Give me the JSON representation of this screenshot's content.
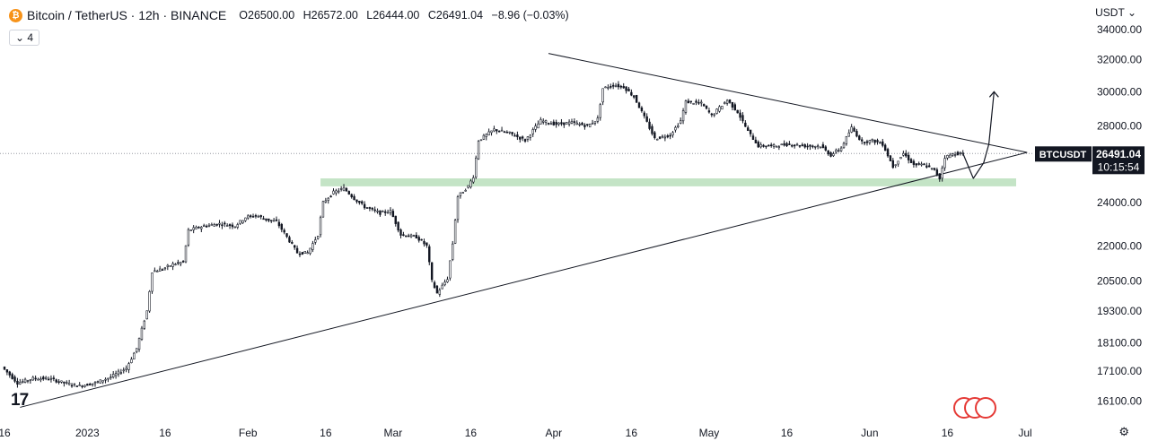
{
  "header": {
    "symbol_title": "Bitcoin / TetherUS · 12h · BINANCE",
    "open": "O26500.00",
    "high": "H26572.00",
    "low": "L26444.00",
    "close": "C26491.04",
    "change": "−8.96 (−0.03%)",
    "indicator_badge": "4"
  },
  "currency_selector": "USDT",
  "price_label": {
    "symbol": "BTCUSDT",
    "price": "26491.04",
    "countdown": "10:15:54"
  },
  "colors": {
    "up": "#131722",
    "down": "#131722",
    "support_zone": "#a5d6a7",
    "last_price_line": "#9598a1",
    "flag_ring": "#e53935"
  },
  "icons": [
    "bitcoin-icon",
    "chevron-down-icon",
    "settings-icon",
    "tradingview-logo-icon",
    "country-flags-icon"
  ],
  "chart_data": {
    "type": "candlestick",
    "title": "Bitcoin / TetherUS · 12h · BINANCE",
    "y_axis": {
      "scale": "log",
      "ticks": [
        16100,
        17100,
        18100,
        19300,
        20500,
        22000,
        24000,
        26000,
        28000,
        30000,
        32000,
        34000
      ],
      "tick_labels": [
        "16100.00",
        "17100.00",
        "18100.00",
        "19300.00",
        "20500.00",
        "22000.00",
        "24000.00",
        "26000.00",
        "28000.00",
        "30000.00",
        "32000.00",
        "34000.00"
      ],
      "range": [
        15600,
        34800
      ]
    },
    "x_axis": {
      "range": [
        "2022-12-16",
        "2023-07-01"
      ],
      "ticks": [
        {
          "date": "2022-12-16",
          "label": "16"
        },
        {
          "date": "2023-01-01",
          "label": "2023"
        },
        {
          "date": "2023-01-16",
          "label": "16"
        },
        {
          "date": "2023-02-01",
          "label": "Feb"
        },
        {
          "date": "2023-02-16",
          "label": "16"
        },
        {
          "date": "2023-03-01",
          "label": "Mar"
        },
        {
          "date": "2023-03-16",
          "label": "16"
        },
        {
          "date": "2023-04-01",
          "label": "Apr"
        },
        {
          "date": "2023-04-16",
          "label": "16"
        },
        {
          "date": "2023-05-01",
          "label": "May"
        },
        {
          "date": "2023-05-16",
          "label": "16"
        },
        {
          "date": "2023-06-01",
          "label": "Jun"
        },
        {
          "date": "2023-06-16",
          "label": "16"
        },
        {
          "date": "2023-07-01",
          "label": "Jul"
        }
      ]
    },
    "price_path": [
      [
        "2022-12-16",
        17250
      ],
      [
        "2022-12-19",
        16700
      ],
      [
        "2022-12-22",
        16850
      ],
      [
        "2022-12-25",
        16850
      ],
      [
        "2022-12-28",
        16700
      ],
      [
        "2022-12-31",
        16600
      ],
      [
        "2023-01-03",
        16700
      ],
      [
        "2023-01-06",
        16900
      ],
      [
        "2023-01-09",
        17200
      ],
      [
        "2023-01-11",
        17900
      ],
      [
        "2023-01-13",
        19300
      ],
      [
        "2023-01-14",
        20900
      ],
      [
        "2023-01-16",
        21000
      ],
      [
        "2023-01-18",
        21200
      ],
      [
        "2023-01-20",
        21300
      ],
      [
        "2023-01-21",
        22700
      ],
      [
        "2023-01-24",
        22900
      ],
      [
        "2023-01-27",
        23000
      ],
      [
        "2023-01-30",
        22900
      ],
      [
        "2023-02-01",
        23300
      ],
      [
        "2023-02-03",
        23400
      ],
      [
        "2023-02-05",
        23200
      ],
      [
        "2023-02-07",
        23100
      ],
      [
        "2023-02-09",
        22400
      ],
      [
        "2023-02-11",
        21700
      ],
      [
        "2023-02-13",
        21700
      ],
      [
        "2023-02-15",
        22500
      ],
      [
        "2023-02-16",
        24000
      ],
      [
        "2023-02-18",
        24500
      ],
      [
        "2023-02-20",
        24700
      ],
      [
        "2023-02-22",
        24200
      ],
      [
        "2023-02-24",
        23800
      ],
      [
        "2023-02-27",
        23500
      ],
      [
        "2023-03-01",
        23600
      ],
      [
        "2023-03-03",
        22500
      ],
      [
        "2023-03-06",
        22400
      ],
      [
        "2023-03-08",
        22000
      ],
      [
        "2023-03-09",
        20500
      ],
      [
        "2023-03-10",
        20000
      ],
      [
        "2023-03-12",
        20600
      ],
      [
        "2023-03-13",
        22100
      ],
      [
        "2023-03-14",
        24300
      ],
      [
        "2023-03-16",
        24800
      ],
      [
        "2023-03-17",
        25300
      ],
      [
        "2023-03-18",
        27200
      ],
      [
        "2023-03-21",
        27800
      ],
      [
        "2023-03-24",
        27600
      ],
      [
        "2023-03-27",
        27200
      ],
      [
        "2023-03-30",
        28300
      ],
      [
        "2023-04-02",
        28100
      ],
      [
        "2023-04-05",
        28200
      ],
      [
        "2023-04-08",
        28000
      ],
      [
        "2023-04-10",
        28400
      ],
      [
        "2023-04-11",
        30200
      ],
      [
        "2023-04-13",
        30400
      ],
      [
        "2023-04-15",
        30300
      ],
      [
        "2023-04-17",
        29700
      ],
      [
        "2023-04-19",
        28500
      ],
      [
        "2023-04-21",
        27300
      ],
      [
        "2023-04-24",
        27500
      ],
      [
        "2023-04-26",
        28300
      ],
      [
        "2023-04-27",
        29400
      ],
      [
        "2023-04-30",
        29300
      ],
      [
        "2023-05-02",
        28600
      ],
      [
        "2023-05-05",
        29500
      ],
      [
        "2023-05-07",
        28800
      ],
      [
        "2023-05-09",
        27700
      ],
      [
        "2023-05-11",
        26900
      ],
      [
        "2023-05-14",
        26900
      ],
      [
        "2023-05-17",
        27000
      ],
      [
        "2023-05-20",
        26900
      ],
      [
        "2023-05-23",
        26900
      ],
      [
        "2023-05-25",
        26400
      ],
      [
        "2023-05-27",
        26800
      ],
      [
        "2023-05-29",
        27900
      ],
      [
        "2023-05-31",
        27100
      ],
      [
        "2023-06-02",
        27200
      ],
      [
        "2023-06-04",
        27000
      ],
      [
        "2023-06-06",
        25800
      ],
      [
        "2023-06-08",
        26500
      ],
      [
        "2023-06-10",
        25900
      ],
      [
        "2023-06-12",
        25900
      ],
      [
        "2023-06-14",
        25600
      ],
      [
        "2023-06-15",
        25200
      ],
      [
        "2023-06-16",
        26300
      ],
      [
        "2023-06-18",
        26500
      ],
      [
        "2023-06-19",
        26491
      ]
    ],
    "last_price": 26491.04,
    "support_zone": {
      "from": "2023-02-15",
      "to": "2023-07-01",
      "low": 24800,
      "high": 25200
    },
    "trendlines": [
      {
        "name": "descending resistance",
        "from": [
          "2023-03-31",
          32400
        ],
        "to": [
          "2023-06-30",
          26550
        ]
      },
      {
        "name": "ascending support",
        "from": [
          "2022-12-19",
          15900
        ],
        "to": [
          "2023-06-30",
          26550
        ]
      }
    ],
    "projection_path": [
      [
        "2023-06-19",
        26500
      ],
      [
        "2023-06-21",
        25200
      ],
      [
        "2023-06-23",
        26000
      ],
      [
        "2023-06-24",
        27000
      ],
      [
        "2023-06-25",
        30000
      ]
    ]
  }
}
